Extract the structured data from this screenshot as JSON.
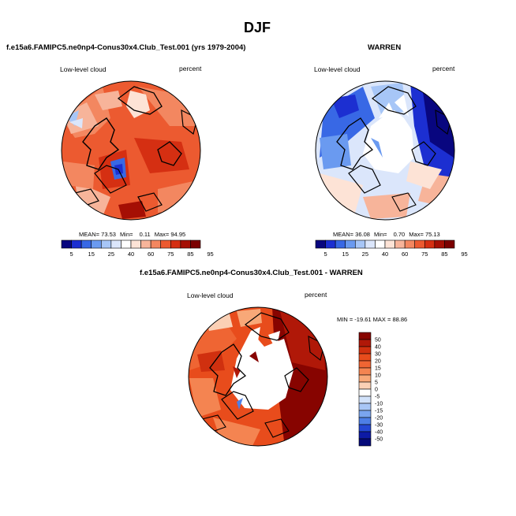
{
  "page": {
    "main_title": "DJF"
  },
  "panel_left": {
    "title": "f.e15a6.FAMIPC5.ne0np4-Conus30x4.Club_Test.001 (yrs 1979-2004)",
    "variable": "Low-level cloud",
    "units": "percent",
    "mean_label": "MEAN=",
    "mean_value": "73.53",
    "min_label": "Min=",
    "min_value": "0.11",
    "max_label": "Max=",
    "max_value": "94.95"
  },
  "panel_right": {
    "title": "WARREN",
    "variable": "Low-level cloud",
    "units": "percent",
    "mean_label": "MEAN=",
    "mean_value": "36.08",
    "min_label": "Min=",
    "min_value": "0.70",
    "max_label": "Max=",
    "max_value": "75.13"
  },
  "panel_diff": {
    "title": "f.e15a6.FAMIPC5.ne0np4-Conus30x4.Club_Test.001 - WARREN",
    "variable": "Low-level cloud",
    "units": "percent",
    "minmax_text": "MIN = -19.61 MAX = 88.86"
  },
  "colorbar_abs": {
    "labels": [
      "5",
      "15",
      "25",
      "40",
      "60",
      "75",
      "85",
      "95"
    ],
    "colors": [
      "#08067f",
      "#1c2fd1",
      "#3868e5",
      "#6a9af0",
      "#a7c6f7",
      "#dbe6fb",
      "#ffffff",
      "#fde3d6",
      "#f7b49a",
      "#f38760",
      "#ec5a30",
      "#d52f12",
      "#a50f04",
      "#7b0000"
    ]
  },
  "colorbar_diff": {
    "labels": [
      "50",
      "40",
      "30",
      "20",
      "15",
      "10",
      "5",
      "0",
      "-5",
      "-10",
      "-15",
      "-20",
      "-30",
      "-40",
      "-50"
    ],
    "colors": [
      "#870400",
      "#b01808",
      "#d0300f",
      "#e84c1c",
      "#ef6533",
      "#f48451",
      "#f8a878",
      "#fbd0b5",
      "#ffffff",
      "#d2e2fa",
      "#a8c6f6",
      "#7aa5ef",
      "#4d7fe6",
      "#2448d4",
      "#0d1aa5",
      "#050a7a"
    ]
  },
  "map_colors": {
    "land_outline": "#000000",
    "missing": "#ffffff"
  }
}
